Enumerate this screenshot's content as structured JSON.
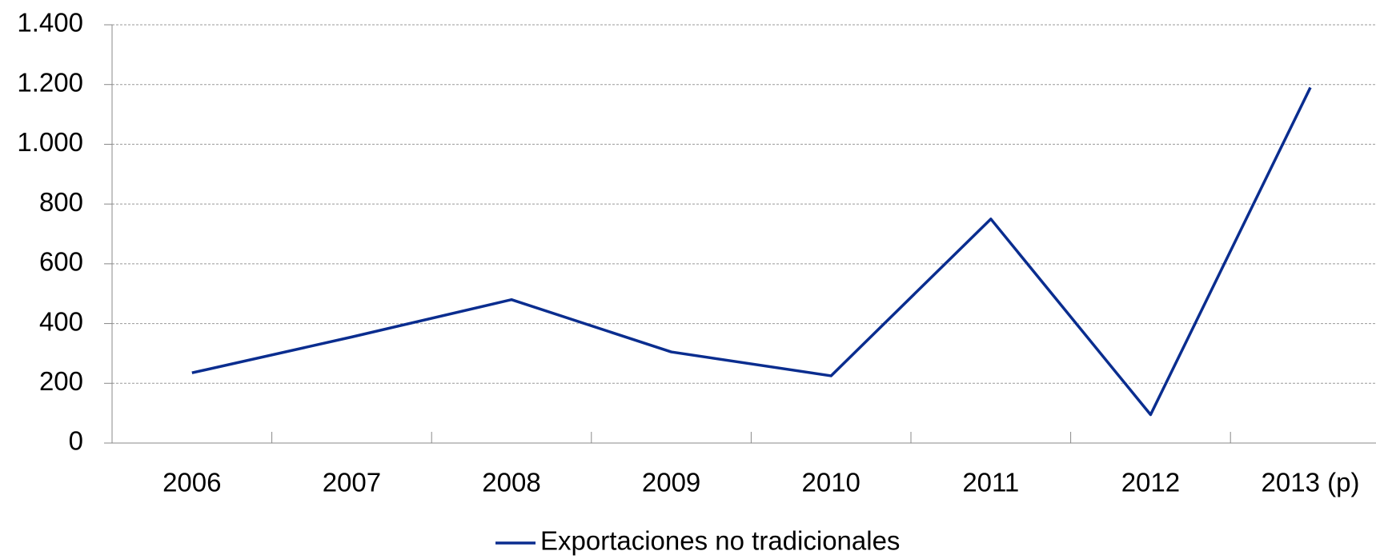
{
  "chart_data": {
    "type": "line",
    "categories": [
      "2006",
      "2007",
      "2008",
      "2009",
      "2010",
      "2011",
      "2012",
      "2013 (p)"
    ],
    "series": [
      {
        "name": "Exportaciones no tradicionales",
        "color": "#0a2d8f",
        "values": [
          235,
          355,
          480,
          305,
          225,
          750,
          95,
          1190
        ]
      }
    ],
    "ylim": [
      0,
      1400
    ],
    "yticks": [
      0,
      200,
      400,
      600,
      800,
      {
        "value": 1000,
        "label": "1.000"
      },
      {
        "value": 1200,
        "label": "1.200"
      },
      {
        "value": 1400,
        "label": "1.400"
      }
    ],
    "grid": true,
    "legend": "bottom"
  }
}
